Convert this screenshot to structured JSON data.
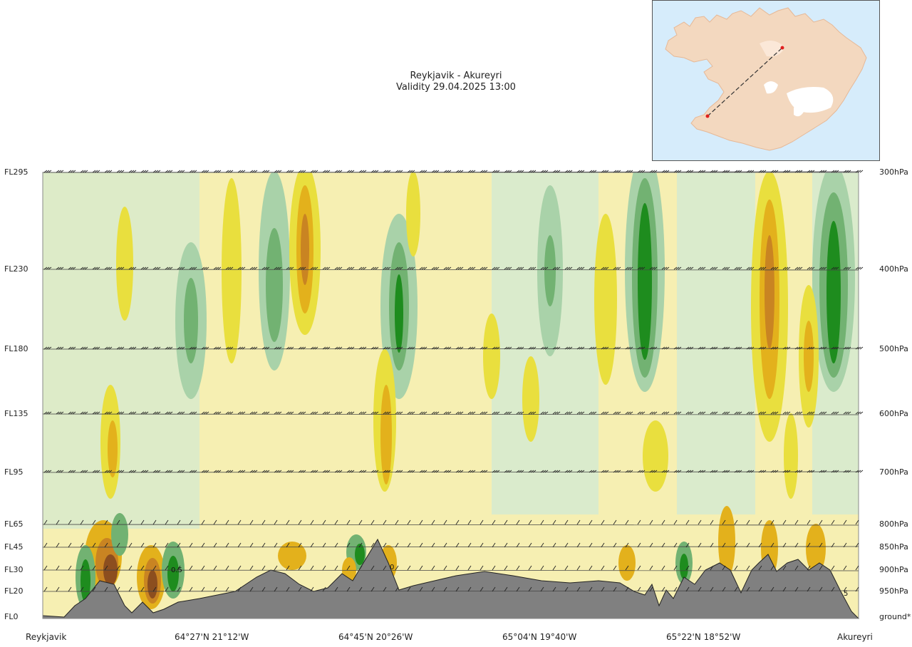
{
  "title": {
    "route": "Reykjavik - Akureyri",
    "validity": "Validity 29.04.2025 13:00"
  },
  "inset_map": {
    "name": "Iceland route map",
    "land_color": "#f3d8bf",
    "glacier_color": "#ffffff",
    "sea_color": "#d6ecfb",
    "route_color": "#333333",
    "endpoint_color": "#e0201e"
  },
  "cross_section": {
    "flight_levels": [
      {
        "label": "FL295",
        "pressure": "300hPa"
      },
      {
        "label": "FL230",
        "pressure": "400hPa"
      },
      {
        "label": "FL180",
        "pressure": "500hPa"
      },
      {
        "label": "FL135",
        "pressure": "600hPa"
      },
      {
        "label": "FL95",
        "pressure": "700hPa"
      },
      {
        "label": "FL65",
        "pressure": "800hPa"
      },
      {
        "label": "FL45",
        "pressure": "850hPa"
      },
      {
        "label": "FL30",
        "pressure": "900hPa"
      },
      {
        "label": "FL20",
        "pressure": "950hPa"
      },
      {
        "label": "FL0",
        "pressure": "ground*"
      }
    ],
    "positions": [
      "Reykjavik",
      "64°27'N 21°12'W",
      "64°45'N 20°26'W",
      "65°04'N 19°40'W",
      "65°22'N 18°52'W",
      "Akureyri"
    ],
    "contour_labels": [
      "0.5",
      "0",
      "5"
    ],
    "colors": {
      "strong_down": "#1e8c1e",
      "moderate_down": "#72b272",
      "light_down": "#a9d2a9",
      "weak_down": "#d3ead2",
      "neutral": "#f6efb2",
      "weak_up": "#e9df3e",
      "moderate_up": "#e3b11c",
      "strong_up": "#c98422",
      "very_strong_up": "#8c4e1f",
      "terrain": "#808080"
    }
  }
}
